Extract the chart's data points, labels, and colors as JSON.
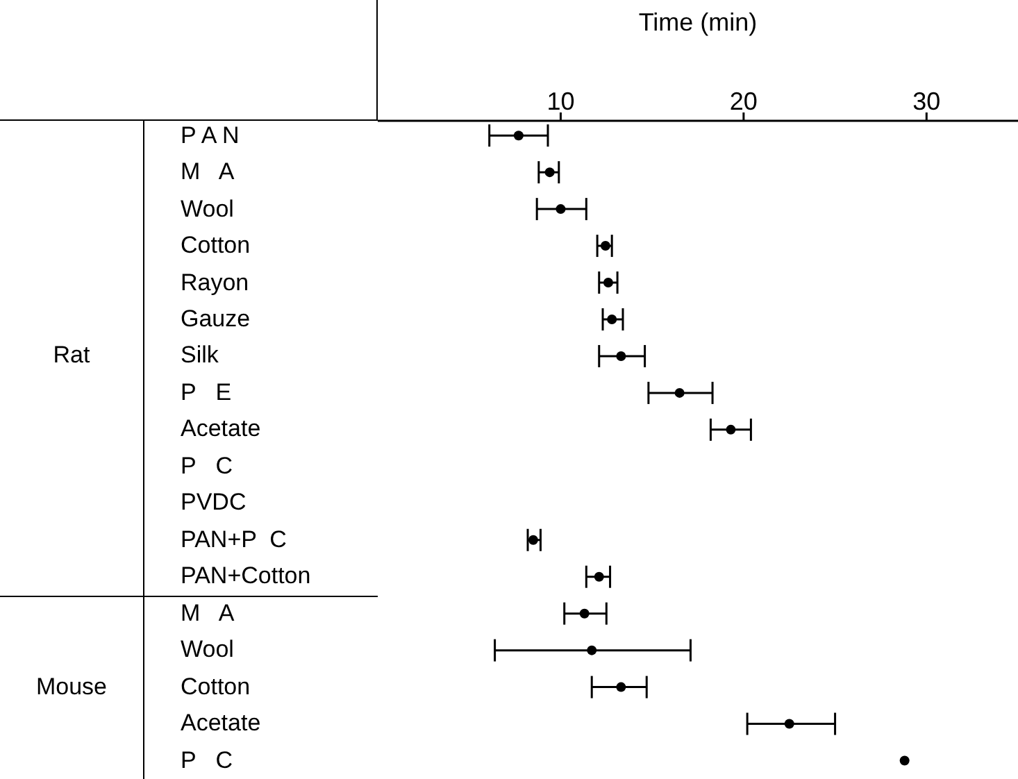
{
  "chart_data": {
    "type": "scatter",
    "xlabel": "Time (min)",
    "categories": [
      "P A N",
      "M   A",
      "Wool",
      "Cotton",
      "Rayon",
      "Gauze",
      "Silk",
      "P   E",
      "Acetate",
      "P   C",
      "PVDC",
      "PAN+P  C",
      "PAN+Cotton",
      "M   A",
      "Wool",
      "Cotton",
      "Acetate",
      "P   C"
    ],
    "series": [
      {
        "color": "#000000",
        "values": [
          7.7,
          9.4,
          10.0,
          12.45,
          12.6,
          12.8,
          13.3,
          16.5,
          19.3,
          null,
          null,
          8.5,
          12.1,
          11.3,
          11.7,
          13.3,
          22.5,
          28.8
        ],
        "errors": [
          [
            6.1,
            9.3
          ],
          [
            8.8,
            9.9
          ],
          [
            8.7,
            11.4
          ],
          [
            12.0,
            12.8
          ],
          [
            12.1,
            13.1
          ],
          [
            12.3,
            13.4
          ],
          [
            12.1,
            14.6
          ],
          [
            14.8,
            18.3
          ],
          [
            18.2,
            20.4
          ],
          null,
          null,
          [
            8.2,
            8.9
          ],
          [
            11.4,
            12.7
          ],
          [
            10.2,
            12.5
          ],
          [
            6.4,
            17.1
          ],
          [
            11.7,
            14.7
          ],
          [
            20.2,
            25.0
          ],
          null
        ]
      }
    ],
    "orientation": "horizontal",
    "xlim": [
      0,
      35
    ],
    "xticks": [
      10,
      20,
      30
    ],
    "marker": "circle",
    "annotations": [
      "Rat",
      "Mouse"
    ]
  }
}
